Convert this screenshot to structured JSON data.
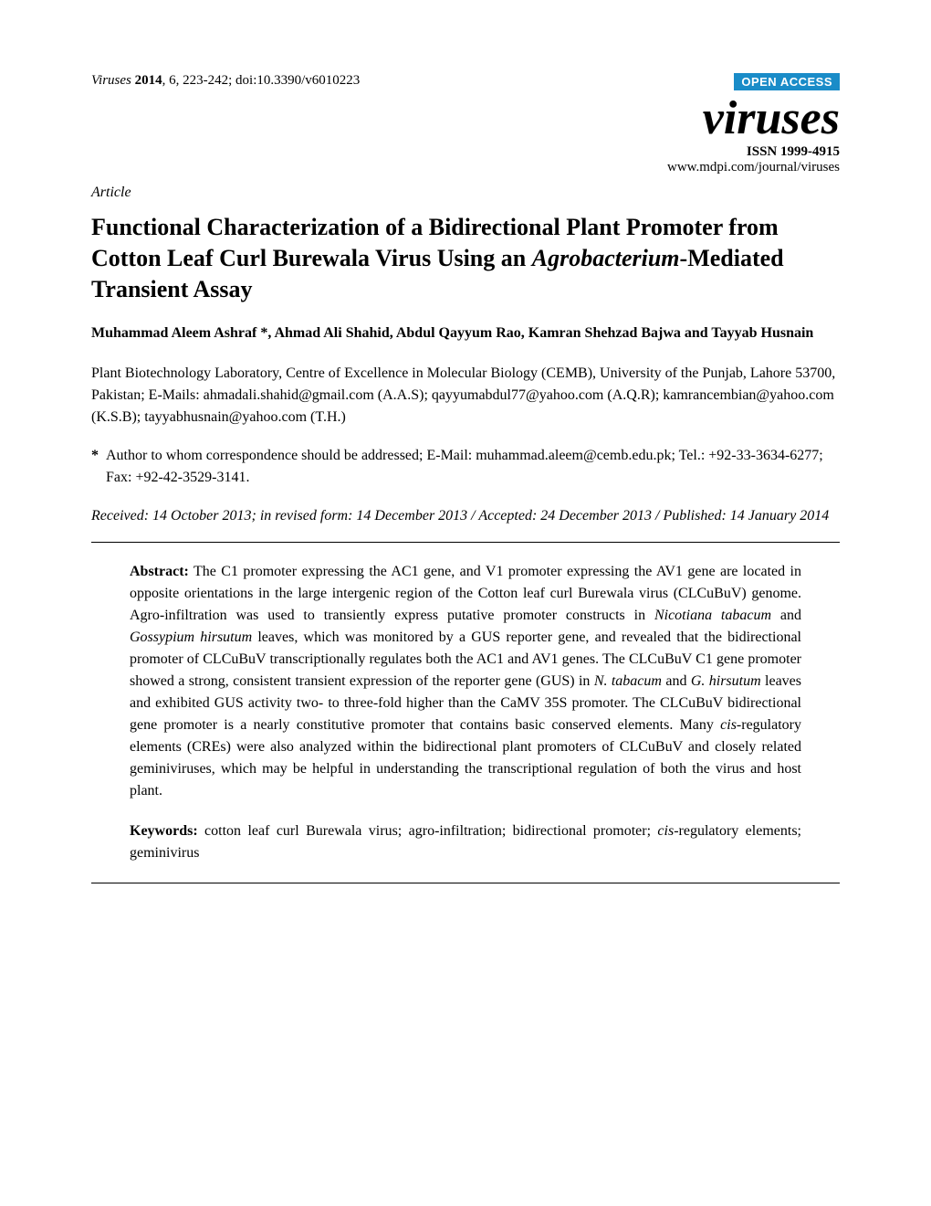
{
  "header": {
    "citation_journal": "Viruses",
    "citation_year": "2014",
    "citation_rest": ", 6, 223-242; doi:10.3390/v6010223",
    "open_access": "OPEN ACCESS",
    "journal_logo": "viruses",
    "issn": "ISSN 1999-4915",
    "journal_url": "www.mdpi.com/journal/viruses"
  },
  "article_type": "Article",
  "title_part1": "Functional Characterization of a Bidirectional Plant Promoter from Cotton Leaf Curl Burewala Virus Using an ",
  "title_italic": "Agrobacterium",
  "title_part2": "-Mediated Transient Assay",
  "authors": "Muhammad Aleem Ashraf *, Ahmad Ali Shahid, Abdul Qayyum Rao, Kamran Shehzad Bajwa and Tayyab Husnain",
  "affiliation": "Plant Biotechnology Laboratory, Centre of Excellence in Molecular Biology (CEMB), University of the Punjab, Lahore 53700, Pakistan; E-Mails: ahmadali.shahid@gmail.com (A.A.S); qayyumabdul77@yahoo.com (A.Q.R); kamrancembian@yahoo.com (K.S.B); tayyabhusnain@yahoo.com (T.H.)",
  "correspondence": "Author to whom correspondence should be addressed; E-Mail: muhammad.aleem@cemb.edu.pk; Tel.: +92-33-3634-6277; Fax: +92-42-3529-3141.",
  "dates": "Received: 14 October 2013; in revised form: 14 December 2013 / Accepted: 24 December 2013 / Published: 14 January 2014",
  "abstract": {
    "label": "Abstract:",
    "p1": " The C1 promoter expressing the AC1 gene, and V1 promoter expressing the AV1 gene are located in opposite orientations in the large intergenic region of the Cotton leaf curl Burewala virus (CLCuBuV) genome. Agro-infiltration was used to transiently express putative promoter constructs in ",
    "i1": "Nicotiana tabacum",
    "p2": " and ",
    "i2": "Gossypium hirsutum",
    "p3": " leaves, which was monitored by a GUS reporter gene, and revealed that the bidirectional promoter of CLCuBuV transcriptionally regulates both the AC1 and AV1 genes. The CLCuBuV C1 gene promoter showed a strong, consistent transient expression of the reporter gene (GUS) in ",
    "i3": "N. tabacum",
    "p4": " and ",
    "i4": "G. hirsutum",
    "p5": " leaves and exhibited GUS activity two- to three-fold higher than the CaMV 35S promoter. The CLCuBuV bidirectional gene promoter is a nearly constitutive promoter that contains basic conserved elements. Many ",
    "i5": "cis",
    "p6": "-regulatory elements (CREs) were also analyzed within the bidirectional plant promoters of CLCuBuV and closely related geminiviruses, which may be helpful in understanding the transcriptional regulation of both the virus and host plant."
  },
  "keywords": {
    "label": "Keywords:",
    "p1": " cotton leaf curl Burewala virus; agro-infiltration; bidirectional promoter; ",
    "i1": "cis",
    "p2": "-regulatory elements; geminivirus"
  }
}
